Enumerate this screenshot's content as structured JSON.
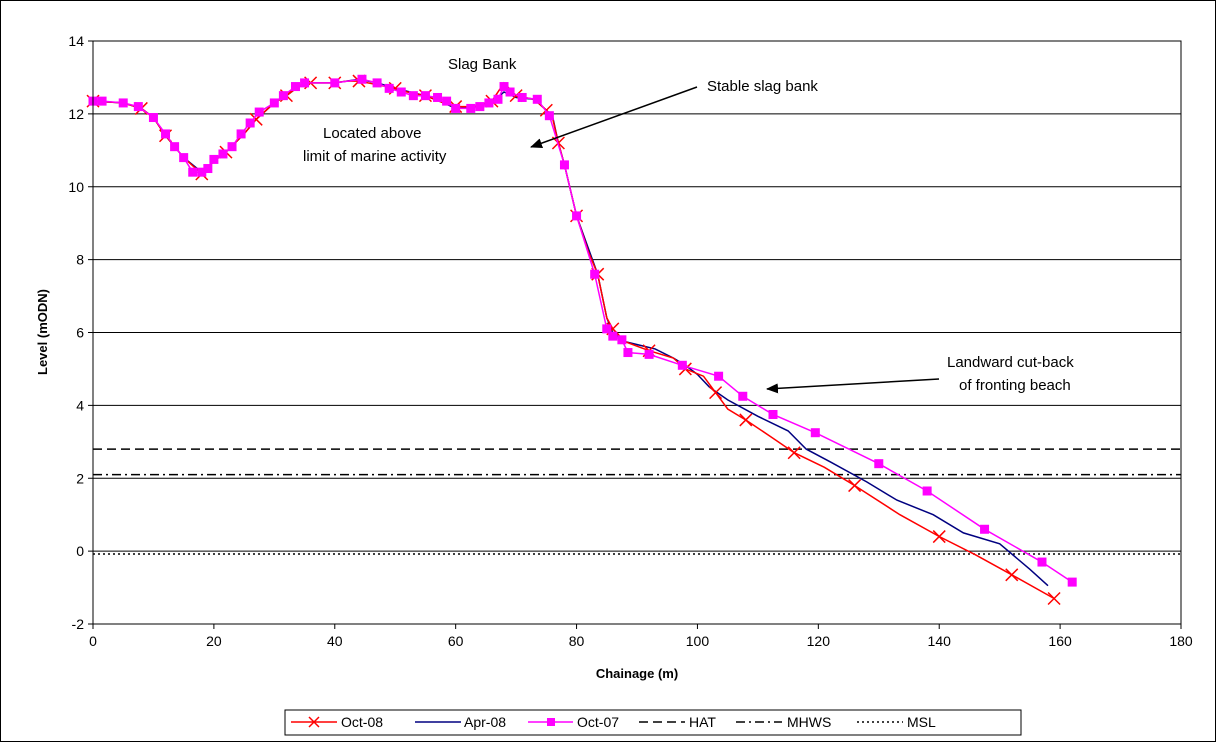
{
  "chart_data": {
    "type": "line",
    "title": "",
    "xlabel": "Chainage (m)",
    "ylabel": "Level (mODN)",
    "xlim": [
      0,
      180
    ],
    "ylim": [
      -2,
      14
    ],
    "xticks": [
      "0",
      "20",
      "40",
      "60",
      "80",
      "100",
      "120",
      "140",
      "160",
      "180"
    ],
    "yticks": [
      "-2",
      "0",
      "2",
      "4",
      "6",
      "8",
      "10",
      "12",
      "14"
    ],
    "grid": "horizontal",
    "legend_position": "bottom",
    "series": [
      {
        "name": "Oct-08",
        "color": "#ff0000",
        "marker": "x",
        "points": [
          [
            0,
            12.35
          ],
          [
            5,
            12.3
          ],
          [
            8,
            12.15
          ],
          [
            10,
            11.9
          ],
          [
            12,
            11.4
          ],
          [
            15,
            10.8
          ],
          [
            18,
            10.35
          ],
          [
            20,
            10.7
          ],
          [
            22,
            10.95
          ],
          [
            25,
            11.45
          ],
          [
            27,
            11.85
          ],
          [
            30,
            12.3
          ],
          [
            32,
            12.5
          ],
          [
            34,
            12.75
          ],
          [
            36,
            12.85
          ],
          [
            38,
            12.85
          ],
          [
            40,
            12.85
          ],
          [
            42,
            12.9
          ],
          [
            44,
            12.9
          ],
          [
            47,
            12.8
          ],
          [
            50,
            12.7
          ],
          [
            52,
            12.6
          ],
          [
            55,
            12.5
          ],
          [
            58,
            12.3
          ],
          [
            60,
            12.2
          ],
          [
            63,
            12.2
          ],
          [
            66,
            12.35
          ],
          [
            68,
            12.85
          ],
          [
            70,
            12.5
          ],
          [
            73,
            12.4
          ],
          [
            75,
            12.1
          ],
          [
            76,
            11.9
          ],
          [
            77,
            11.2
          ],
          [
            78,
            10.6
          ],
          [
            80,
            9.2
          ],
          [
            82,
            8.2
          ],
          [
            83.5,
            7.6
          ],
          [
            85,
            6.4
          ],
          [
            86,
            6.1
          ],
          [
            88,
            5.75
          ],
          [
            92,
            5.5
          ],
          [
            96,
            5.3
          ],
          [
            98,
            5.0
          ],
          [
            101,
            4.8
          ],
          [
            103,
            4.35
          ],
          [
            105,
            3.9
          ],
          [
            108,
            3.6
          ],
          [
            112.5,
            3.1
          ],
          [
            116,
            2.7
          ],
          [
            121,
            2.3
          ],
          [
            126,
            1.8
          ],
          [
            133.5,
            1.0
          ],
          [
            140,
            0.4
          ],
          [
            146,
            -0.1
          ],
          [
            152,
            -0.65
          ],
          [
            159,
            -1.3
          ]
        ]
      },
      {
        "name": "Apr-08",
        "color": "#000080",
        "marker": "none",
        "points": [
          [
            0,
            12.35
          ],
          [
            5,
            12.3
          ],
          [
            8,
            12.15
          ],
          [
            10,
            11.9
          ],
          [
            12,
            11.4
          ],
          [
            15,
            10.8
          ],
          [
            18,
            10.4
          ],
          [
            20,
            10.7
          ],
          [
            22,
            10.95
          ],
          [
            25,
            11.45
          ],
          [
            27,
            11.85
          ],
          [
            30,
            12.3
          ],
          [
            32,
            12.5
          ],
          [
            34,
            12.75
          ],
          [
            36,
            12.85
          ],
          [
            40,
            12.85
          ],
          [
            44,
            12.95
          ],
          [
            47,
            12.85
          ],
          [
            50,
            12.7
          ],
          [
            55,
            12.5
          ],
          [
            58,
            12.3
          ],
          [
            60,
            12.15
          ],
          [
            63,
            12.2
          ],
          [
            66,
            12.3
          ],
          [
            68,
            12.6
          ],
          [
            70,
            12.45
          ],
          [
            73,
            12.4
          ],
          [
            75,
            12.1
          ],
          [
            76,
            11.95
          ],
          [
            77,
            11.2
          ],
          [
            78,
            10.6
          ],
          [
            80,
            9.2
          ],
          [
            83.5,
            7.6
          ],
          [
            85,
            6.4
          ],
          [
            86,
            6.0
          ],
          [
            88,
            5.75
          ],
          [
            93,
            5.55
          ],
          [
            96,
            5.3
          ],
          [
            98,
            5.1
          ],
          [
            100,
            4.85
          ],
          [
            102,
            4.5
          ],
          [
            105,
            4.15
          ],
          [
            110,
            3.7
          ],
          [
            115,
            3.3
          ],
          [
            118,
            2.8
          ],
          [
            122,
            2.45
          ],
          [
            128,
            1.9
          ],
          [
            133,
            1.4
          ],
          [
            139,
            1.0
          ],
          [
            144,
            0.5
          ],
          [
            150,
            0.2
          ],
          [
            155,
            -0.5
          ],
          [
            158,
            -0.95
          ]
        ]
      },
      {
        "name": "Oct-07",
        "color": "#ff00ff",
        "marker": "square",
        "points": [
          [
            0,
            12.35
          ],
          [
            1.5,
            12.35
          ],
          [
            5,
            12.3
          ],
          [
            7.5,
            12.2
          ],
          [
            10,
            11.9
          ],
          [
            12,
            11.45
          ],
          [
            13.5,
            11.1
          ],
          [
            15,
            10.8
          ],
          [
            16.5,
            10.4
          ],
          [
            18,
            10.4
          ],
          [
            19,
            10.5
          ],
          [
            20,
            10.75
          ],
          [
            21.5,
            10.9
          ],
          [
            23,
            11.1
          ],
          [
            24.5,
            11.45
          ],
          [
            26,
            11.75
          ],
          [
            27.5,
            12.05
          ],
          [
            30,
            12.3
          ],
          [
            31.5,
            12.5
          ],
          [
            33.5,
            12.75
          ],
          [
            35,
            12.85
          ],
          [
            40,
            12.85
          ],
          [
            44.5,
            12.95
          ],
          [
            47,
            12.85
          ],
          [
            49,
            12.7
          ],
          [
            51,
            12.6
          ],
          [
            53,
            12.5
          ],
          [
            55,
            12.5
          ],
          [
            57,
            12.45
          ],
          [
            58.5,
            12.35
          ],
          [
            60,
            12.15
          ],
          [
            62.5,
            12.15
          ],
          [
            64,
            12.2
          ],
          [
            65.5,
            12.3
          ],
          [
            67,
            12.4
          ],
          [
            68,
            12.75
          ],
          [
            69,
            12.6
          ],
          [
            71,
            12.45
          ],
          [
            73.5,
            12.4
          ],
          [
            75.5,
            11.95
          ],
          [
            78,
            10.6
          ],
          [
            80,
            9.2
          ],
          [
            83,
            7.6
          ],
          [
            85,
            6.1
          ],
          [
            86,
            5.9
          ],
          [
            87.5,
            5.8
          ],
          [
            88.5,
            5.45
          ],
          [
            92,
            5.4
          ],
          [
            97.5,
            5.1
          ],
          [
            103.5,
            4.8
          ],
          [
            107.5,
            4.25
          ],
          [
            112.5,
            3.75
          ],
          [
            119.5,
            3.25
          ],
          [
            130,
            2.4
          ],
          [
            138,
            1.65
          ],
          [
            147.5,
            0.6
          ],
          [
            157,
            -0.3
          ],
          [
            162,
            -0.85
          ]
        ]
      }
    ],
    "reference_lines": [
      {
        "name": "HAT",
        "y": 2.8,
        "style": "dashed"
      },
      {
        "name": "MHWS",
        "y": 2.1,
        "style": "dash-dot"
      },
      {
        "name": "MSL",
        "y": -0.08,
        "style": "dotted"
      }
    ],
    "annotations": [
      {
        "text": "Slag Bank"
      },
      {
        "text": "Located above"
      },
      {
        "text": "limit of marine activity"
      },
      {
        "text": "Stable slag bank"
      },
      {
        "text": "Landward cut-back"
      },
      {
        "text": "of fronting beach"
      }
    ]
  }
}
